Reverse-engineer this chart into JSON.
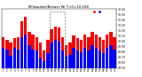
{
  "title": "Milwaukee/Brewer Wi T=0=30.028",
  "background_color": "#ffffff",
  "bar_width": 0.8,
  "days": [
    1,
    2,
    3,
    4,
    5,
    6,
    7,
    8,
    9,
    10,
    11,
    12,
    13,
    14,
    15,
    16,
    17,
    18,
    19,
    20,
    21,
    22,
    23,
    24,
    25,
    26,
    27,
    28,
    29,
    30,
    31
  ],
  "high_values": [
    30.08,
    30.02,
    29.98,
    30.06,
    30.07,
    30.38,
    30.45,
    30.18,
    30.12,
    30.08,
    29.98,
    29.82,
    30.02,
    30.22,
    30.28,
    30.25,
    30.08,
    29.93,
    29.98,
    30.1,
    30.05,
    30.03,
    30.12,
    30.08,
    30.18,
    30.12,
    30.08,
    30.03,
    30.12,
    30.18,
    30.08
  ],
  "low_values": [
    29.88,
    29.85,
    29.72,
    29.88,
    29.85,
    30.08,
    30.12,
    29.92,
    29.85,
    29.82,
    29.7,
    29.62,
    29.78,
    29.98,
    30.02,
    30.0,
    29.82,
    29.72,
    29.75,
    29.88,
    29.82,
    29.8,
    29.88,
    29.82,
    29.92,
    29.88,
    29.82,
    29.78,
    29.88,
    29.92,
    29.85
  ],
  "high_color": "#ff0000",
  "low_color": "#0000ff",
  "highlight_days": [
    14,
    15,
    16,
    17
  ],
  "ylim": [
    29.5,
    30.6
  ],
  "yticks": [
    29.5,
    29.6,
    29.7,
    29.8,
    29.9,
    30.0,
    30.1,
    30.2,
    30.3,
    30.4,
    30.5,
    30.6
  ],
  "ytick_labels": [
    "29.50",
    "29.60",
    "29.70",
    "29.80",
    "29.90",
    "30.00",
    "30.10",
    "30.20",
    "30.30",
    "30.40",
    "30.50",
    "30.60"
  ],
  "dot_high_color": "#ff0000",
  "dot_low_color": "#0000ff"
}
